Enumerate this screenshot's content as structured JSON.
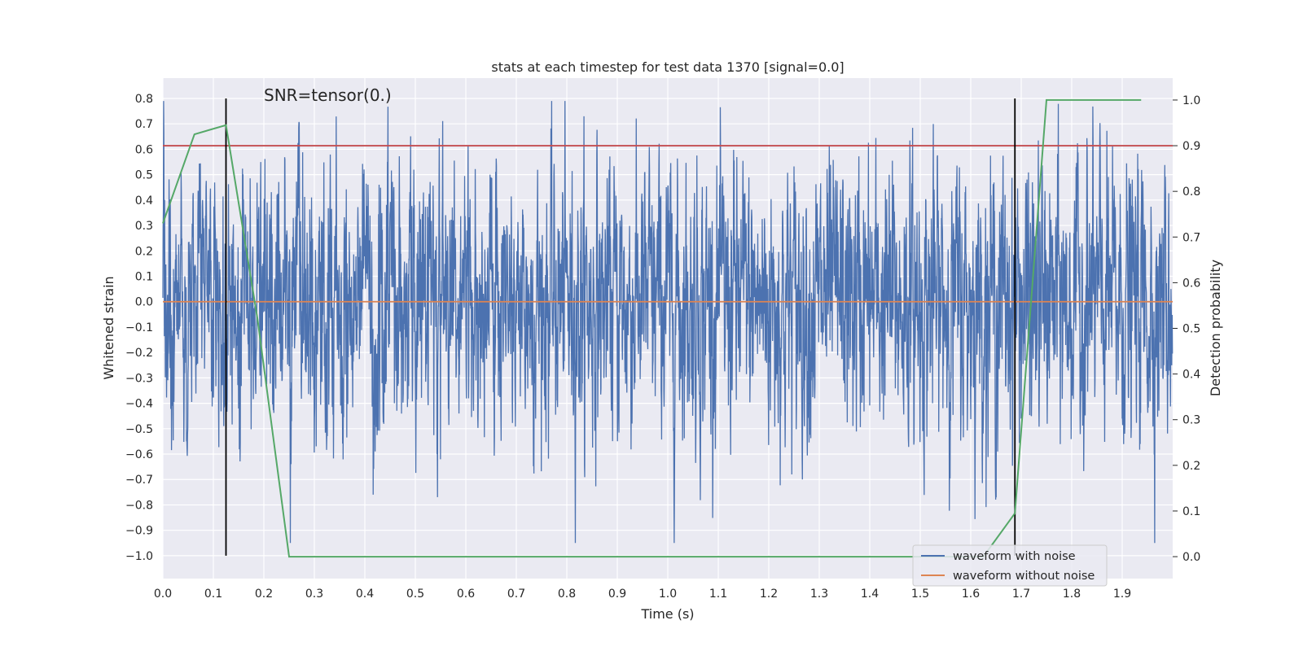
{
  "chart_data": {
    "type": "line",
    "title": "stats at each timestep for test data 1370 [signal=0.0]",
    "xlabel": "Time (s)",
    "ylabel": "Whitened strain",
    "y2label": "Detection probability",
    "xlim": [
      0.0,
      2.0
    ],
    "ylim": [
      -1.09,
      0.88
    ],
    "y2lim": [
      -0.048,
      1.048
    ],
    "xticks": [
      0.0,
      0.1,
      0.2,
      0.3,
      0.4,
      0.5,
      0.6,
      0.7,
      0.8,
      0.9,
      1.0,
      1.1,
      1.2,
      1.3,
      1.4,
      1.5,
      1.6,
      1.7,
      1.8,
      1.9
    ],
    "xtick_labels": [
      "0.0",
      "0.1",
      "0.2",
      "0.3",
      "0.4",
      "0.5",
      "0.6",
      "0.7",
      "0.8",
      "0.9",
      "1.0",
      "1.1",
      "1.2",
      "1.3",
      "1.4",
      "1.5",
      "1.6",
      "1.7",
      "1.8",
      "1.9"
    ],
    "yticks": [
      0.8,
      0.7,
      0.6,
      0.5,
      0.4,
      0.3,
      0.2,
      0.1,
      0.0,
      -0.1,
      -0.2,
      -0.3,
      -0.4,
      -0.5,
      -0.6,
      -0.7,
      -0.8,
      -0.9,
      -1.0
    ],
    "ytick_labels": [
      "0.8",
      "0.7",
      "0.6",
      "0.5",
      "0.4",
      "0.3",
      "0.2",
      "0.1",
      "0.0",
      "−0.1",
      "−0.2",
      "−0.3",
      "−0.4",
      "−0.5",
      "−0.6",
      "−0.7",
      "−0.8",
      "−0.9",
      "−1.0"
    ],
    "y2ticks": [
      1.0,
      0.9,
      0.8,
      0.7,
      0.6,
      0.5,
      0.4,
      0.3,
      0.2,
      0.1,
      0.0
    ],
    "y2tick_labels": [
      "1.0",
      "0.9",
      "0.8",
      "0.7",
      "0.6",
      "0.5",
      "0.4",
      "0.3",
      "0.2",
      "0.1",
      "0.0"
    ],
    "grid": true,
    "legend_position": "bottom-right",
    "annotation": "SNR=tensor(0.)",
    "series": [
      {
        "name": "waveform with noise",
        "color": "#4c72b0",
        "axis": "left",
        "sample_rate_hz": 2048,
        "x_start": 0.0,
        "x_end": 2.0,
        "amplitude_std": 0.26,
        "y_range": [
          -0.95,
          0.79
        ],
        "note_values": "dense noise series; individual samples not readable"
      },
      {
        "name": "waveform without noise",
        "color": "#dd8452",
        "axis": "left",
        "x": [
          0.0,
          2.0
        ],
        "y": [
          0.0,
          0.0
        ]
      },
      {
        "name": "detection probability",
        "color": "#55a868",
        "axis": "right",
        "x": [
          0.0,
          0.0625,
          0.125,
          0.1875,
          0.25,
          0.3125,
          1.625,
          1.6875,
          1.75,
          1.9375
        ],
        "y": [
          0.73,
          0.925,
          0.945,
          0.52,
          0.0,
          0.0,
          0.0,
          0.095,
          1.0,
          1.0
        ]
      }
    ],
    "threshold_line": {
      "axis": "right",
      "value": 0.9,
      "color": "#c44e52"
    },
    "vertical_lines": [
      {
        "x": 0.125,
        "y_from": -1.0,
        "y_to": 0.8,
        "color": "#000000"
      },
      {
        "x": 1.6875,
        "y_from": -1.0,
        "y_to": 0.8,
        "color": "#000000"
      }
    ]
  }
}
